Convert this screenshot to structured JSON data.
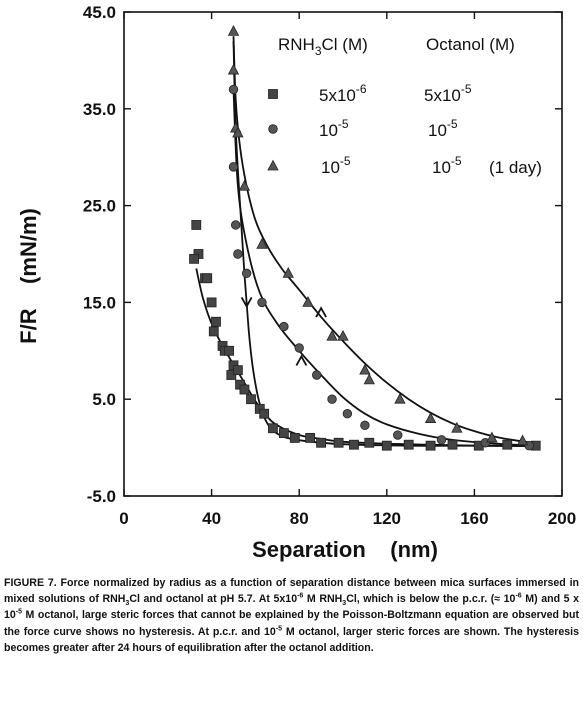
{
  "chart_data": {
    "type": "scatter",
    "title": "",
    "xlabel": "Separation    (nm)",
    "ylabel": "F/R    (mN/m)",
    "xlim": [
      0,
      200
    ],
    "ylim": [
      -5,
      45
    ],
    "xticks": [
      0,
      40,
      80,
      120,
      160,
      200
    ],
    "yticks": [
      -5.0,
      5.0,
      15.0,
      25.0,
      35.0,
      45.0
    ],
    "xtick_labels": [
      "0",
      "40",
      "80",
      "120",
      "160",
      "200"
    ],
    "ytick_labels": [
      "-5.0",
      "5.0",
      "15.0",
      "25.0",
      "35.0",
      "45.0"
    ],
    "legend": {
      "position": "top-right",
      "header_rnh3cl": "RNH3Cl (M)",
      "header_octanol": "Octanol (M)",
      "rows": [
        {
          "marker": "square",
          "rnh3cl": "5x10-6",
          "octanol": "5x10-5",
          "note": ""
        },
        {
          "marker": "circle",
          "rnh3cl": "10-5",
          "octanol": "10-5",
          "note": ""
        },
        {
          "marker": "triangle",
          "rnh3cl": "10-5",
          "octanol": "10-5",
          "note": "(1 day)"
        }
      ]
    },
    "series": [
      {
        "marker": "square",
        "points": [
          [
            33,
            23
          ],
          [
            34,
            20
          ],
          [
            32,
            19.5
          ],
          [
            37,
            17.5
          ],
          [
            38,
            17.5
          ],
          [
            40,
            15
          ],
          [
            42,
            13
          ],
          [
            41,
            12
          ],
          [
            45,
            10.5
          ],
          [
            46,
            10
          ],
          [
            48,
            10
          ],
          [
            50,
            8.5
          ],
          [
            49,
            7.5
          ],
          [
            52,
            8
          ],
          [
            53,
            6.5
          ],
          [
            55,
            6
          ],
          [
            58,
            5
          ],
          [
            62,
            4
          ],
          [
            64,
            3.5
          ],
          [
            68,
            2
          ],
          [
            73,
            1.5
          ],
          [
            78,
            1
          ],
          [
            85,
            1
          ],
          [
            90,
            0.5
          ],
          [
            98,
            0.5
          ],
          [
            105,
            0.3
          ],
          [
            112,
            0.5
          ],
          [
            120,
            0.2
          ],
          [
            130,
            0.3
          ],
          [
            140,
            0.2
          ],
          [
            150,
            0.3
          ],
          [
            162,
            0.2
          ],
          [
            175,
            0.3
          ],
          [
            188,
            0.2
          ]
        ]
      },
      {
        "marker": "circle",
        "points": [
          [
            50,
            37
          ],
          [
            50,
            29
          ],
          [
            51,
            23
          ],
          [
            52,
            20
          ],
          [
            56,
            18
          ],
          [
            63,
            15
          ],
          [
            73,
            12.5
          ],
          [
            80,
            10.3
          ],
          [
            88,
            7.5
          ],
          [
            95,
            5
          ],
          [
            102,
            3.5
          ],
          [
            110,
            2.3
          ],
          [
            125,
            1.3
          ],
          [
            145,
            0.8
          ],
          [
            165,
            0.5
          ],
          [
            185,
            0.2
          ]
        ]
      },
      {
        "marker": "triangle",
        "points": [
          [
            50,
            43
          ],
          [
            50,
            39
          ],
          [
            51,
            33
          ],
          [
            52,
            32.5
          ],
          [
            55,
            27
          ],
          [
            63,
            21
          ],
          [
            75,
            18
          ],
          [
            84,
            15
          ],
          [
            95,
            11.5
          ],
          [
            100,
            11.5
          ],
          [
            110,
            8
          ],
          [
            112,
            7
          ],
          [
            126,
            5
          ],
          [
            140,
            3
          ],
          [
            152,
            2
          ],
          [
            168,
            1
          ],
          [
            182,
            0.7
          ]
        ]
      }
    ],
    "fit_curves": [
      {
        "marker": "square",
        "direction": "approach",
        "points": [
          [
            33,
            18.5
          ],
          [
            36,
            15.5
          ],
          [
            40,
            12.8
          ],
          [
            45,
            10.5
          ],
          [
            50,
            8.6
          ],
          [
            55,
            6.7
          ],
          [
            60,
            4.8
          ],
          [
            65,
            3.3
          ],
          [
            70,
            2.3
          ],
          [
            80,
            1.3
          ],
          [
            90,
            0.9
          ],
          [
            100,
            0.6
          ],
          [
            120,
            0.4
          ],
          [
            140,
            0.3
          ],
          [
            160,
            0.2
          ],
          [
            190,
            0.15
          ]
        ]
      },
      {
        "marker": "square",
        "direction": "retract",
        "points": [
          [
            50,
            42
          ],
          [
            51,
            33
          ],
          [
            53,
            25
          ],
          [
            55,
            18
          ],
          [
            57,
            12
          ],
          [
            59,
            8
          ],
          [
            62,
            4.5
          ],
          [
            66,
            2.3
          ],
          [
            72,
            1.2
          ],
          [
            82,
            0.7
          ],
          [
            100,
            0.35
          ],
          [
            130,
            0.2
          ],
          [
            160,
            0.2
          ],
          [
            190,
            0.2
          ]
        ]
      },
      {
        "marker": "circle",
        "direction": "curve",
        "points": [
          [
            50,
            37
          ],
          [
            52,
            27
          ],
          [
            56,
            21
          ],
          [
            62,
            16
          ],
          [
            70,
            12.8
          ],
          [
            80,
            10
          ],
          [
            90,
            7.5
          ],
          [
            100,
            5.2
          ],
          [
            110,
            3.5
          ],
          [
            120,
            2.4
          ],
          [
            135,
            1.4
          ],
          [
            150,
            0.8
          ],
          [
            170,
            0.4
          ],
          [
            190,
            0.2
          ]
        ]
      },
      {
        "marker": "triangle",
        "direction": "curve",
        "points": [
          [
            50,
            42.5
          ],
          [
            51,
            36
          ],
          [
            53,
            31
          ],
          [
            56,
            27
          ],
          [
            60,
            23.5
          ],
          [
            65,
            21
          ],
          [
            72,
            18.5
          ],
          [
            80,
            16.3
          ],
          [
            90,
            13.5
          ],
          [
            100,
            11
          ],
          [
            110,
            8.7
          ],
          [
            120,
            6.7
          ],
          [
            130,
            5
          ],
          [
            140,
            3.6
          ],
          [
            150,
            2.5
          ],
          [
            160,
            1.7
          ],
          [
            170,
            1.1
          ],
          [
            180,
            0.7
          ],
          [
            190,
            0.4
          ]
        ]
      }
    ],
    "arrows": [
      {
        "x": 56,
        "y": 15,
        "direction": "down"
      },
      {
        "x": 90,
        "y": 14,
        "direction": "up"
      },
      {
        "x": 81,
        "y": 9,
        "direction": "up"
      }
    ]
  },
  "caption": {
    "part1": "FIGURE 7.  Force normalized by radius as a function of separation distance between mica surfaces immersed in mixed solutions of RNH",
    "part2": "Cl and octanol at pH 5.7.  At 5x10",
    "part3": " M RNH",
    "part4": "Cl, which is below the p.c.r. (≈ 10",
    "part5": " M) and 5 x 10",
    "part6": " M octanol, large steric forces that cannot be explained by the Poisson-Boltzmann equation are observed but the force curve shows no hysteresis.  At p.c.r. and 10",
    "part7": " M octanol, larger steric forces are shown.  The hysteresis becomes greater after 24 hours of equilibration after the octanol addition.",
    "sub3": "3",
    "sup_6": "-6",
    "sup_5": "-5"
  }
}
